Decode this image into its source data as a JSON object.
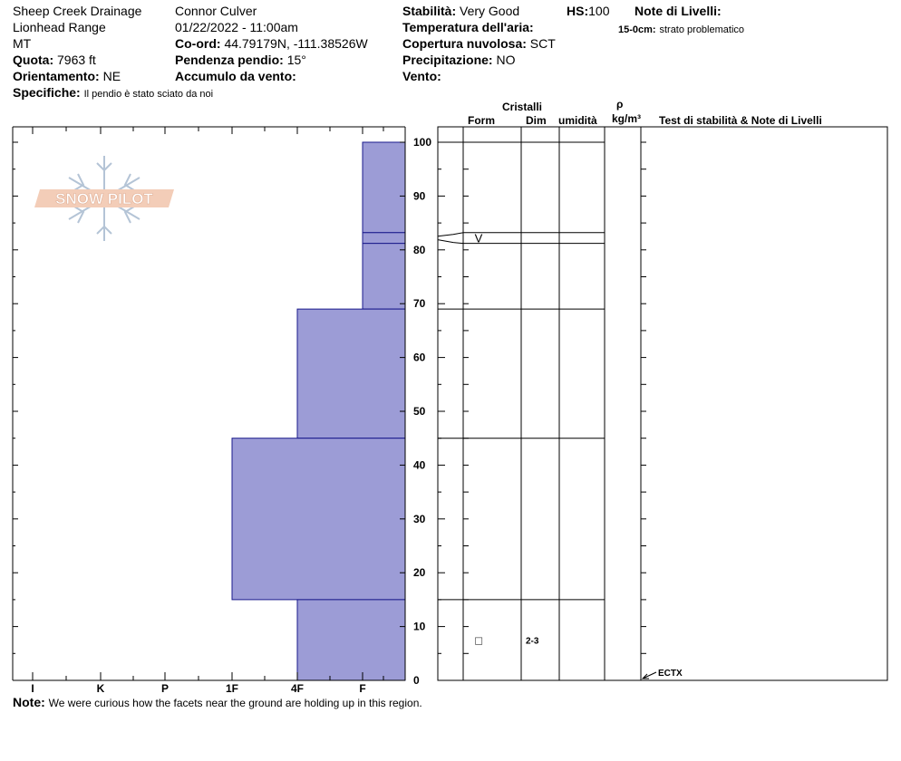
{
  "header": {
    "location": "Sheep Creek Drainage",
    "range": "Lionhead Range",
    "state": "MT",
    "elevation_label": "Quota:",
    "elevation_value": "7963 ft",
    "aspect_label": "Orientamento:",
    "aspect_value": "NE",
    "specifics_label": "Specifiche:",
    "specifics_value": "Il pendio è stato sciato da noi",
    "observer": "Connor Culver",
    "datetime": "01/22/2022 - 11:00am",
    "coord_label": "Co-ord:",
    "coord_value": "44.79179N, -111.38526W",
    "slope_label": "Pendenza pendio:",
    "slope_value": "15°",
    "wind_loading_label": "Accumulo da vento:",
    "stability_label": "Stabilità:",
    "stability_value": "Very Good",
    "air_temp_label": "Temperatura dell'aria:",
    "cloud_label": "Copertura nuvolosa:",
    "cloud_value": "SCT",
    "precip_label": "Precipitazione:",
    "precip_value": "NO",
    "wind_label": "Vento:",
    "hs_label": "HS:",
    "hs_value": "100",
    "layer_notes_title": "Note di Livelli:",
    "layer_note_depth": "15-0cm:",
    "layer_note_text": "strato problematico"
  },
  "logo_text": "SNOW PILOT",
  "footer": {
    "note_label": "Note:",
    "note_text": "We were curious how the facets near the ground are holding up in this region."
  },
  "columns": {
    "crystals": "Cristalli",
    "form": "Form",
    "size": "Dim",
    "moisture": "umidità",
    "density_symbol": "ρ",
    "density_unit": "kg/m³",
    "tests": "Test di stabilità & Note di Livelli"
  },
  "chart_data": {
    "type": "bar",
    "title": "",
    "ylabel": "",
    "ylim": [
      0,
      100
    ],
    "yticks": [
      0,
      10,
      20,
      30,
      40,
      50,
      60,
      70,
      80,
      90,
      100
    ],
    "hardness_scale": [
      "I",
      "K",
      "P",
      "1F",
      "4F",
      "F"
    ],
    "layers": [
      {
        "top": 100,
        "bottom": 83.2,
        "hardness": "F"
      },
      {
        "top": 83.2,
        "bottom": 81.2,
        "hardness": "F"
      },
      {
        "top": 81.2,
        "bottom": 69,
        "hardness": "F"
      },
      {
        "top": 69,
        "bottom": 45,
        "hardness": "4F"
      },
      {
        "top": 45,
        "bottom": 15,
        "hardness": "1F"
      },
      {
        "top": 15,
        "bottom": 0,
        "hardness": "4F"
      }
    ],
    "grains": [
      {
        "depth": 82.2,
        "form": "V",
        "size": ""
      },
      {
        "depth": 7.5,
        "form": "□",
        "size": "2-3"
      }
    ],
    "tests": [
      {
        "depth": 0,
        "label": "ECTX"
      }
    ],
    "colors": {
      "fill": "#9c9cd6",
      "edge": "#1a1a8c"
    }
  }
}
